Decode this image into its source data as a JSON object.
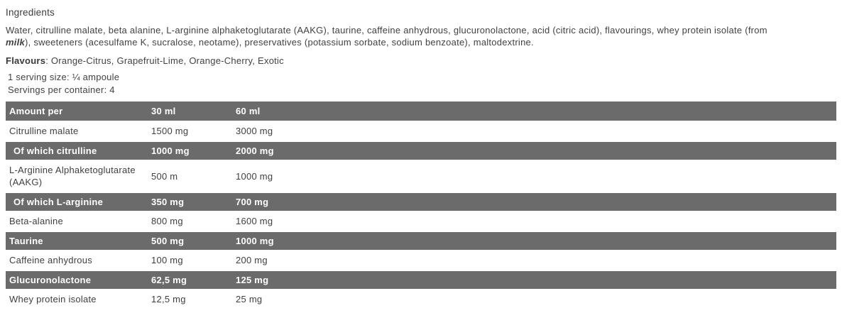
{
  "ingredients": {
    "heading": "Ingredients",
    "line1": "Water, citrulline malate, beta alanine, L-arginine alphaketoglutarate (AAKG), taurine, caffeine anhydrous, glucuronolactone, acid (citric acid), flavourings, whey protein isolate (from",
    "allergen": "milk",
    "line2_rest": "), sweeteners (acesulfame K, sucralose, neotame), preservatives (potassium sorbate, sodium benzoate), maltodextrine."
  },
  "flavours": {
    "label": "Flavours",
    "separator": ": ",
    "list": "Orange-Citrus, Grapefruit-Lime, Orange-Cherry, Exotic"
  },
  "serving": {
    "size_line": "1 serving size: ¼ ampoule",
    "per_container_line": "Servings per container: 4"
  },
  "table": {
    "columns": [
      "Amount per",
      "30 ml",
      "60 ml"
    ],
    "rows": [
      {
        "label": "Citrulline malate",
        "amount_30ml": "1500 mg",
        "amount_60ml": "3000 mg",
        "variant": "light",
        "indent": false
      },
      {
        "label": "Of which citrulline",
        "amount_30ml": "1000 mg",
        "amount_60ml": "2000 mg",
        "variant": "dark",
        "indent": true
      },
      {
        "label": "L-Arginine Alphaketoglutarate (AAKG)",
        "amount_30ml": "500 m",
        "amount_60ml": "1000 mg",
        "variant": "light",
        "indent": false
      },
      {
        "label": "Of which L-arginine",
        "amount_30ml": "350 mg",
        "amount_60ml": "700 mg",
        "variant": "dark",
        "indent": true
      },
      {
        "label": "Beta-alanine",
        "amount_30ml": "800 mg",
        "amount_60ml": "1600 mg",
        "variant": "light",
        "indent": false
      },
      {
        "label": "Taurine",
        "amount_30ml": "500 mg",
        "amount_60ml": "1000 mg",
        "variant": "dark",
        "indent": false
      },
      {
        "label": "Caffeine anhydrous",
        "amount_30ml": "100 mg",
        "amount_60ml": "200 mg",
        "variant": "light",
        "indent": false
      },
      {
        "label": "Glucuronolactone",
        "amount_30ml": "62,5 mg",
        "amount_60ml": "125 mg",
        "variant": "dark",
        "indent": false
      },
      {
        "label": "Whey protein isolate",
        "amount_30ml": "12,5 mg",
        "amount_60ml": "25 mg",
        "variant": "light",
        "indent": false
      }
    ]
  },
  "colors": {
    "row_dark_bg": "#6b6b6b",
    "row_dark_text": "#ffffff",
    "body_text": "#3f3f3f",
    "background": "#ffffff"
  }
}
